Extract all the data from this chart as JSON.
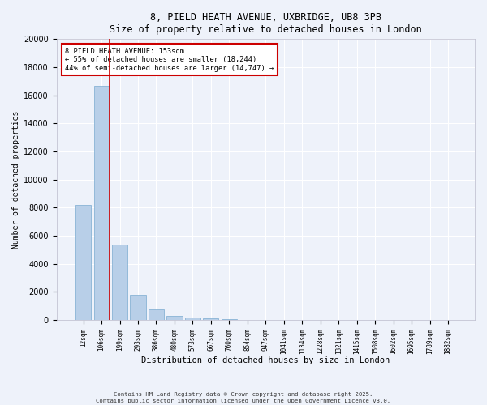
{
  "title_line1": "8, PIELD HEATH AVENUE, UXBRIDGE, UB8 3PB",
  "title_line2": "Size of property relative to detached houses in London",
  "xlabel": "Distribution of detached houses by size in London",
  "ylabel": "Number of detached properties",
  "categories": [
    "12sqm",
    "106sqm",
    "199sqm",
    "293sqm",
    "386sqm",
    "480sqm",
    "573sqm",
    "667sqm",
    "760sqm",
    "854sqm",
    "947sqm",
    "1041sqm",
    "1134sqm",
    "1228sqm",
    "1321sqm",
    "1415sqm",
    "1508sqm",
    "1602sqm",
    "1695sqm",
    "1789sqm",
    "1882sqm"
  ],
  "values": [
    8200,
    16700,
    5350,
    1800,
    750,
    320,
    200,
    130,
    60,
    0,
    0,
    0,
    0,
    0,
    0,
    0,
    0,
    0,
    0,
    0,
    0
  ],
  "bar_color": "#b8cfe8",
  "bar_edge_color": "#7aaad0",
  "vline_color": "#cc0000",
  "vline_pos": 1.45,
  "annotation_text": "8 PIELD HEATH AVENUE: 153sqm\n← 55% of detached houses are smaller (18,244)\n44% of semi-detached houses are larger (14,747) →",
  "annotation_box_color": "#cc0000",
  "ylim": [
    0,
    20000
  ],
  "yticks": [
    0,
    2000,
    4000,
    6000,
    8000,
    10000,
    12000,
    14000,
    16000,
    18000,
    20000
  ],
  "background_color": "#eef2fa",
  "grid_color": "#ffffff",
  "footer_line1": "Contains HM Land Registry data © Crown copyright and database right 2025.",
  "footer_line2": "Contains public sector information licensed under the Open Government Licence v3.0."
}
